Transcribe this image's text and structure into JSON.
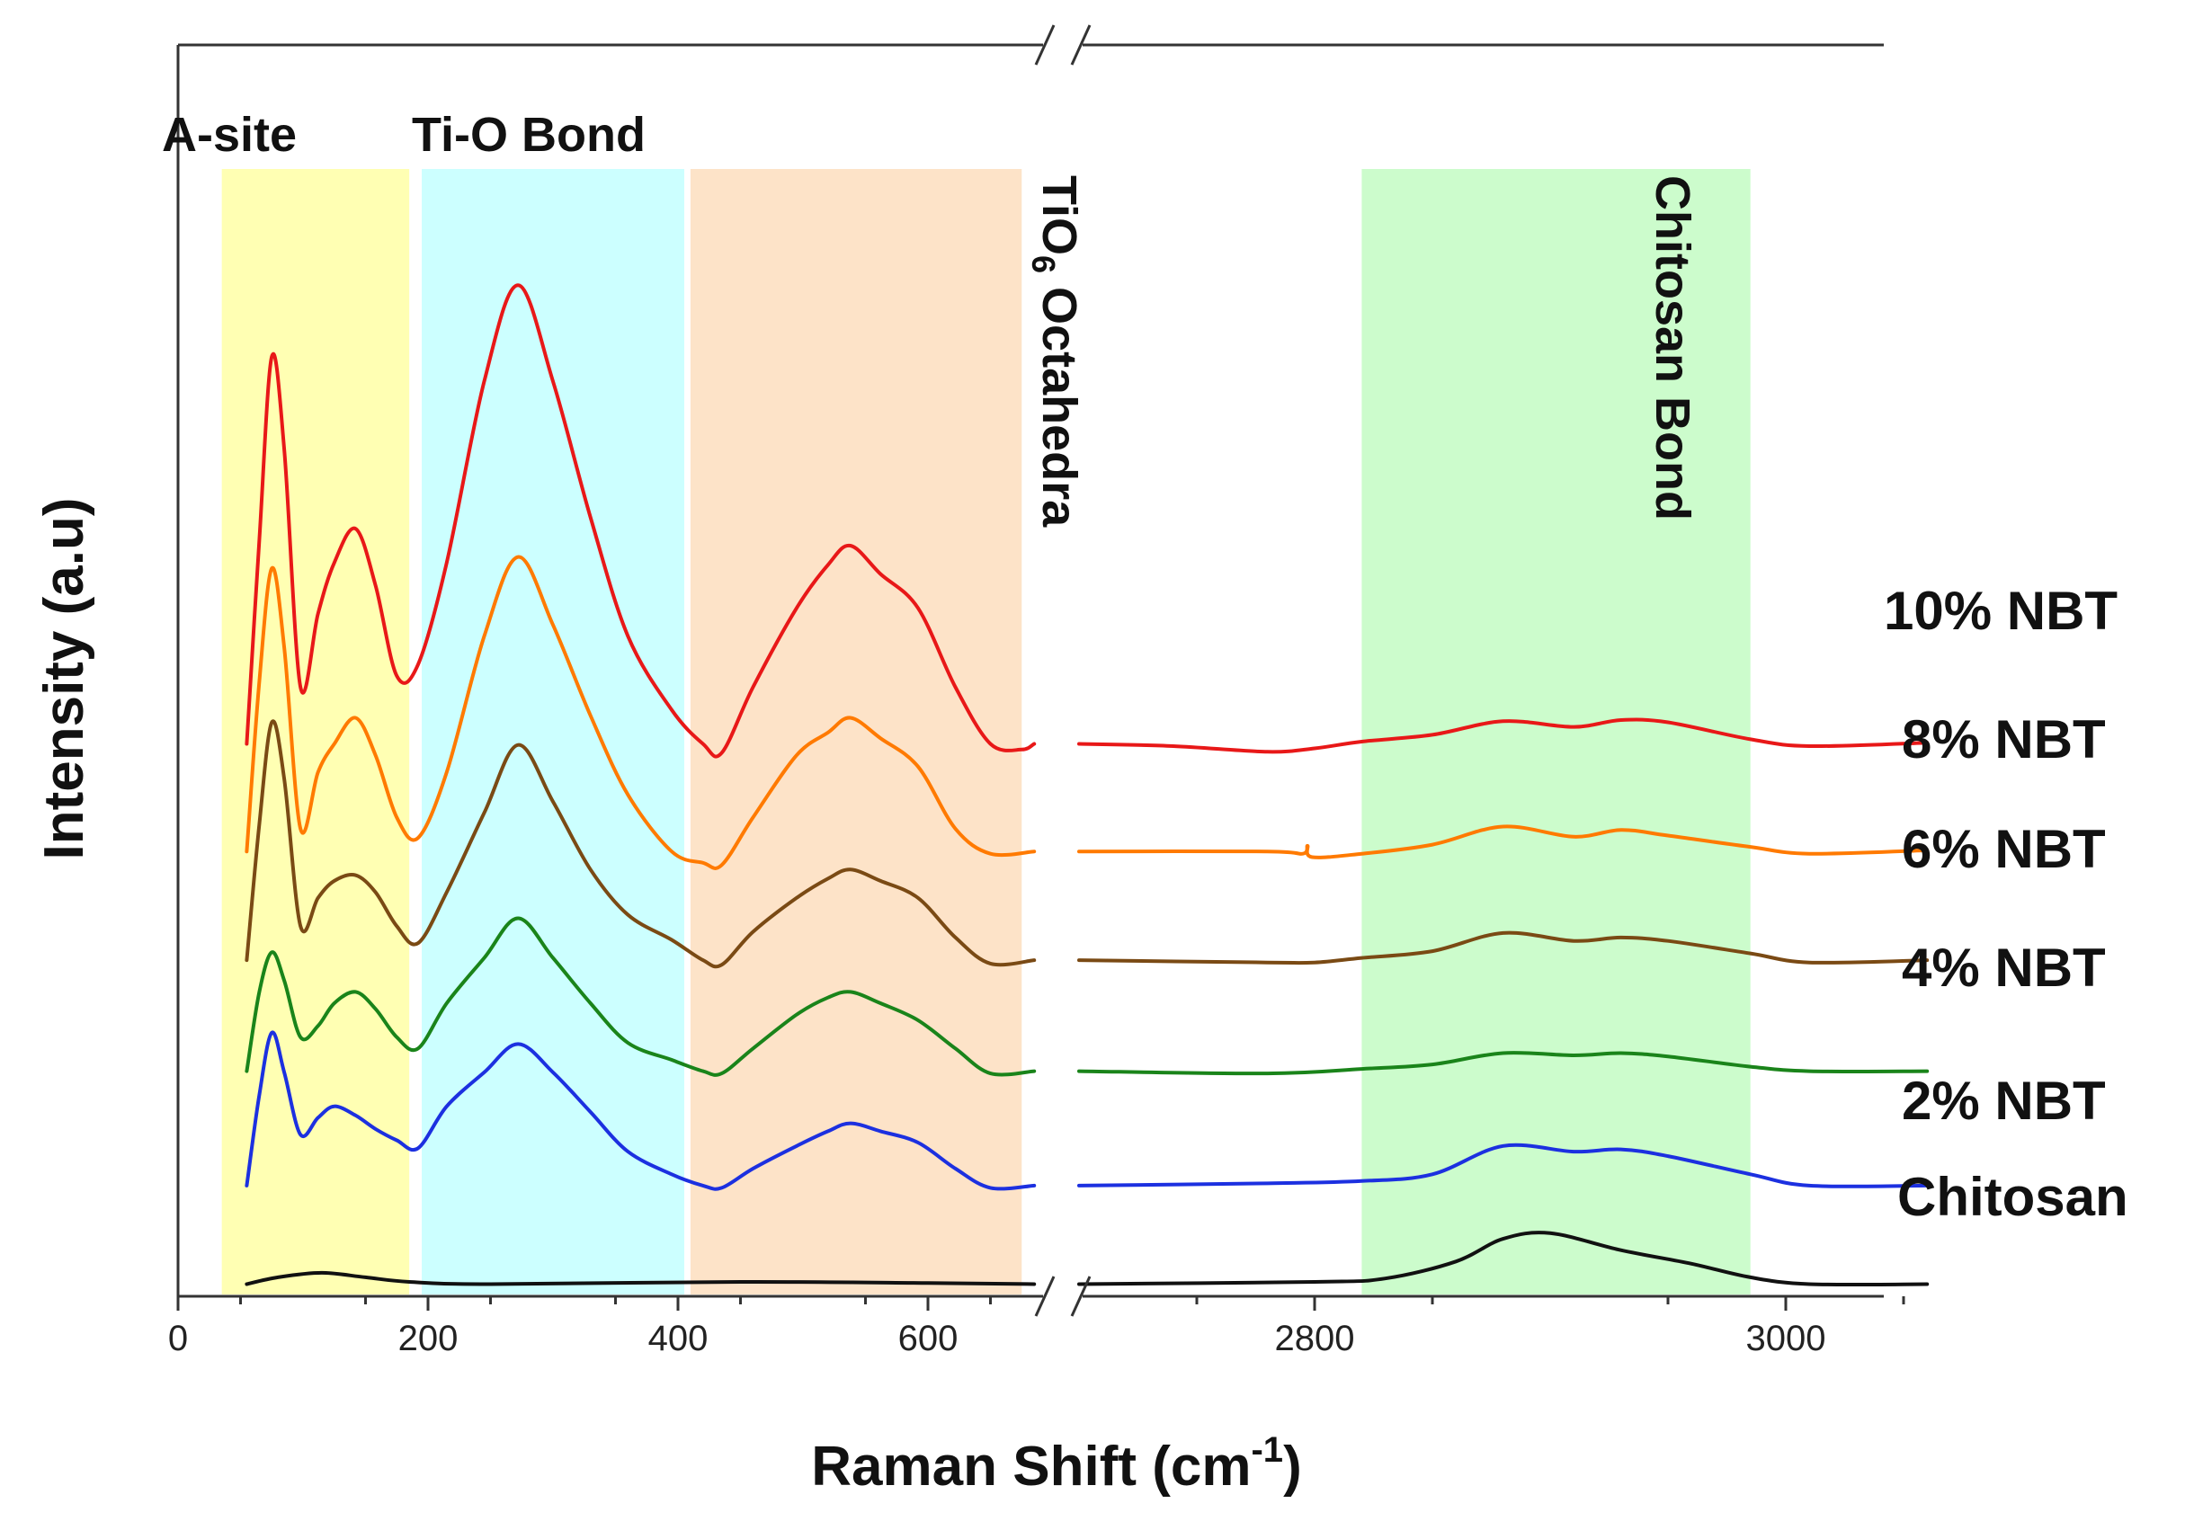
{
  "chart_data": {
    "type": "line",
    "title": "",
    "xlabel": "Raman Shift (cm",
    "xlabel_sup": "-1",
    "xlabel_end": ")",
    "ylabel": "Intensity (a.u)",
    "x_axis_break": true,
    "x_segments": [
      {
        "range": [
          0,
          685
        ],
        "ticks": [
          0,
          200,
          400,
          600
        ],
        "tick_labels": [
          "0",
          "200",
          "400",
          "600"
        ]
      },
      {
        "range": [
          2700,
          3060
        ],
        "ticks": [
          2800,
          3000
        ],
        "tick_labels": [
          "2800",
          "3000"
        ]
      }
    ],
    "y_range": [
      0,
      1
    ],
    "grid": false,
    "regions": [
      {
        "label": "A-site",
        "x_start": 35,
        "x_end": 185,
        "color": "#ffffb3"
      },
      {
        "label": "Ti-O Bond",
        "x_start": 195,
        "x_end": 405,
        "color": "#ccffff"
      },
      {
        "label": "TiO",
        "label_sub": "6",
        "label_end": " Octahedra",
        "x_start": 410,
        "x_end": 675,
        "color": "#fde3c8"
      },
      {
        "label": "Chitosan Bond",
        "x_start": 2820,
        "x_end": 2985,
        "color": "#ccfccc"
      }
    ],
    "series": [
      {
        "name": "10% NBT",
        "color": "#e81818",
        "offset": 0.502,
        "low": [
          [
            55,
            0.0
          ],
          [
            65,
            0.18
          ],
          [
            75,
            0.342
          ],
          [
            85,
            0.26
          ],
          [
            98,
            0.05
          ],
          [
            112,
            0.115
          ],
          [
            125,
            0.16
          ],
          [
            142,
            0.19
          ],
          [
            158,
            0.14
          ],
          [
            175,
            0.06
          ],
          [
            192,
            0.07
          ],
          [
            215,
            0.16
          ],
          [
            245,
            0.32
          ],
          [
            272,
            0.405
          ],
          [
            300,
            0.32
          ],
          [
            330,
            0.2
          ],
          [
            360,
            0.095
          ],
          [
            395,
            0.03
          ],
          [
            420,
            0.0
          ],
          [
            435,
            -0.008
          ],
          [
            460,
            0.05
          ],
          [
            495,
            0.12
          ],
          [
            520,
            0.158
          ],
          [
            538,
            0.175
          ],
          [
            562,
            0.15
          ],
          [
            592,
            0.12
          ],
          [
            622,
            0.05
          ],
          [
            650,
            0.0
          ],
          [
            675,
            -0.005
          ],
          [
            685,
            0.0
          ]
        ],
        "high": [
          [
            2700,
            0.0
          ],
          [
            2740,
            -0.002
          ],
          [
            2780,
            -0.007
          ],
          [
            2800,
            -0.004
          ],
          [
            2820,
            0.002
          ],
          [
            2850,
            0.008
          ],
          [
            2880,
            0.02
          ],
          [
            2910,
            0.015
          ],
          [
            2930,
            0.021
          ],
          [
            2950,
            0.019
          ],
          [
            2985,
            0.004
          ],
          [
            3010,
            -0.002
          ],
          [
            3060,
            0.001
          ]
        ]
      },
      {
        "name": "8% NBT",
        "color": "#ff7a00",
        "offset": 0.407,
        "low": [
          [
            55,
            0.0
          ],
          [
            65,
            0.15
          ],
          [
            75,
            0.25
          ],
          [
            85,
            0.18
          ],
          [
            98,
            0.02
          ],
          [
            112,
            0.07
          ],
          [
            125,
            0.095
          ],
          [
            142,
            0.118
          ],
          [
            158,
            0.085
          ],
          [
            175,
            0.03
          ],
          [
            192,
            0.012
          ],
          [
            215,
            0.07
          ],
          [
            245,
            0.19
          ],
          [
            272,
            0.26
          ],
          [
            300,
            0.2
          ],
          [
            330,
            0.12
          ],
          [
            360,
            0.05
          ],
          [
            395,
            0.0
          ],
          [
            420,
            -0.01
          ],
          [
            435,
            -0.012
          ],
          [
            460,
            0.03
          ],
          [
            495,
            0.085
          ],
          [
            520,
            0.105
          ],
          [
            538,
            0.118
          ],
          [
            562,
            0.1
          ],
          [
            592,
            0.075
          ],
          [
            622,
            0.02
          ],
          [
            650,
            -0.002
          ],
          [
            685,
            0.0
          ]
        ],
        "high": [
          [
            2700,
            0.0
          ],
          [
            2780,
            0.0
          ],
          [
            2795,
            -0.002
          ],
          [
            2797,
            0.005
          ],
          [
            2799,
            -0.005
          ],
          [
            2820,
            -0.002
          ],
          [
            2850,
            0.006
          ],
          [
            2880,
            0.022
          ],
          [
            2910,
            0.013
          ],
          [
            2930,
            0.019
          ],
          [
            2950,
            0.014
          ],
          [
            2985,
            0.004
          ],
          [
            3010,
            -0.002
          ],
          [
            3060,
            0.001
          ]
        ]
      },
      {
        "name": "6% NBT",
        "color": "#7a4a14",
        "offset": 0.311,
        "low": [
          [
            55,
            0.0
          ],
          [
            65,
            0.12
          ],
          [
            75,
            0.21
          ],
          [
            85,
            0.16
          ],
          [
            98,
            0.03
          ],
          [
            112,
            0.055
          ],
          [
            125,
            0.07
          ],
          [
            142,
            0.075
          ],
          [
            158,
            0.06
          ],
          [
            175,
            0.03
          ],
          [
            192,
            0.015
          ],
          [
            215,
            0.06
          ],
          [
            245,
            0.13
          ],
          [
            272,
            0.19
          ],
          [
            300,
            0.14
          ],
          [
            330,
            0.08
          ],
          [
            360,
            0.04
          ],
          [
            395,
            0.018
          ],
          [
            420,
            0.0
          ],
          [
            435,
            -0.004
          ],
          [
            460,
            0.025
          ],
          [
            495,
            0.055
          ],
          [
            520,
            0.072
          ],
          [
            538,
            0.08
          ],
          [
            562,
            0.07
          ],
          [
            592,
            0.055
          ],
          [
            622,
            0.02
          ],
          [
            650,
            -0.003
          ],
          [
            685,
            0.0
          ]
        ],
        "high": [
          [
            2700,
            0.0
          ],
          [
            2780,
            -0.002
          ],
          [
            2800,
            -0.002
          ],
          [
            2820,
            0.002
          ],
          [
            2850,
            0.008
          ],
          [
            2880,
            0.024
          ],
          [
            2910,
            0.017
          ],
          [
            2930,
            0.02
          ],
          [
            2950,
            0.017
          ],
          [
            2985,
            0.006
          ],
          [
            3010,
            -0.002
          ],
          [
            3060,
            0.0
          ]
        ]
      },
      {
        "name": "4% NBT",
        "color": "#1a841a",
        "offset": 0.213,
        "low": [
          [
            55,
            0.0
          ],
          [
            65,
            0.07
          ],
          [
            75,
            0.105
          ],
          [
            85,
            0.08
          ],
          [
            98,
            0.03
          ],
          [
            112,
            0.04
          ],
          [
            125,
            0.06
          ],
          [
            142,
            0.07
          ],
          [
            158,
            0.055
          ],
          [
            175,
            0.03
          ],
          [
            192,
            0.02
          ],
          [
            215,
            0.06
          ],
          [
            245,
            0.1
          ],
          [
            272,
            0.135
          ],
          [
            300,
            0.1
          ],
          [
            330,
            0.06
          ],
          [
            360,
            0.025
          ],
          [
            395,
            0.01
          ],
          [
            420,
            0.0
          ],
          [
            435,
            -0.002
          ],
          [
            460,
            0.02
          ],
          [
            495,
            0.05
          ],
          [
            520,
            0.065
          ],
          [
            538,
            0.07
          ],
          [
            562,
            0.06
          ],
          [
            592,
            0.045
          ],
          [
            622,
            0.02
          ],
          [
            650,
            -0.002
          ],
          [
            685,
            0.0
          ]
        ],
        "high": [
          [
            2700,
            0.0
          ],
          [
            2780,
            -0.002
          ],
          [
            2820,
            0.002
          ],
          [
            2850,
            0.006
          ],
          [
            2880,
            0.016
          ],
          [
            2910,
            0.014
          ],
          [
            2930,
            0.016
          ],
          [
            2950,
            0.013
          ],
          [
            2985,
            0.004
          ],
          [
            3010,
            0.0
          ],
          [
            3060,
            0.0
          ]
        ]
      },
      {
        "name": "2% NBT",
        "color": "#1c30e0",
        "offset": 0.112,
        "low": [
          [
            55,
            0.0
          ],
          [
            65,
            0.08
          ],
          [
            75,
            0.135
          ],
          [
            85,
            0.1
          ],
          [
            98,
            0.045
          ],
          [
            112,
            0.06
          ],
          [
            125,
            0.07
          ],
          [
            142,
            0.062
          ],
          [
            158,
            0.05
          ],
          [
            175,
            0.04
          ],
          [
            192,
            0.033
          ],
          [
            215,
            0.07
          ],
          [
            245,
            0.1
          ],
          [
            272,
            0.125
          ],
          [
            300,
            0.1
          ],
          [
            330,
            0.065
          ],
          [
            360,
            0.03
          ],
          [
            395,
            0.01
          ],
          [
            420,
            0.0
          ],
          [
            435,
            -0.002
          ],
          [
            460,
            0.015
          ],
          [
            495,
            0.035
          ],
          [
            520,
            0.048
          ],
          [
            538,
            0.055
          ],
          [
            562,
            0.048
          ],
          [
            592,
            0.038
          ],
          [
            622,
            0.015
          ],
          [
            650,
            -0.002
          ],
          [
            685,
            0.0
          ]
        ],
        "high": [
          [
            2700,
            0.0
          ],
          [
            2780,
            0.002
          ],
          [
            2820,
            0.004
          ],
          [
            2850,
            0.01
          ],
          [
            2880,
            0.035
          ],
          [
            2910,
            0.03
          ],
          [
            2930,
            0.032
          ],
          [
            2950,
            0.026
          ],
          [
            2985,
            0.01
          ],
          [
            3010,
            0.0
          ],
          [
            3060,
            0.0
          ]
        ]
      },
      {
        "name": "Chitosan",
        "color": "#111111",
        "offset": 0.025,
        "low": [
          [
            55,
            0.0
          ],
          [
            80,
            0.006
          ],
          [
            115,
            0.01
          ],
          [
            150,
            0.006
          ],
          [
            185,
            0.002
          ],
          [
            250,
            0.0
          ],
          [
            450,
            0.002
          ],
          [
            600,
            0.001
          ],
          [
            685,
            0.0
          ]
        ],
        "high": [
          [
            2700,
            0.0
          ],
          [
            2800,
            0.002
          ],
          [
            2830,
            0.005
          ],
          [
            2860,
            0.02
          ],
          [
            2880,
            0.04
          ],
          [
            2900,
            0.045
          ],
          [
            2930,
            0.03
          ],
          [
            2960,
            0.018
          ],
          [
            2985,
            0.006
          ],
          [
            3010,
            0.0
          ],
          [
            3060,
            0.0
          ]
        ]
      }
    ]
  }
}
